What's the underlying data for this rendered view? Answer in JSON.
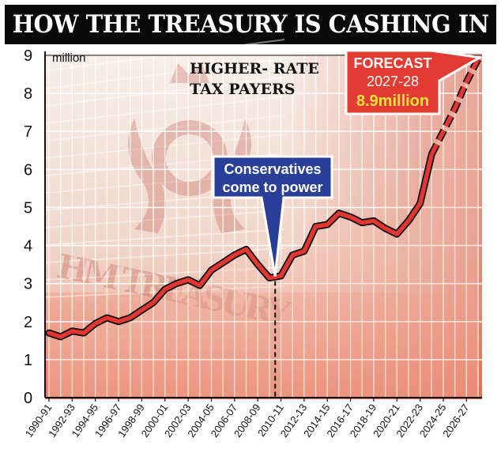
{
  "header": {
    "title": "HOW THE TREASURY IS CASHING IN"
  },
  "background": {
    "stamp_text": "HM TREASURY"
  },
  "chart_data": {
    "type": "line",
    "title": "HOW THE TREASURY IS CASHING IN",
    "series_label": [
      "HIGHER- RATE",
      "TAX PAYERS"
    ],
    "ylabel": "million",
    "ylim": [
      0,
      9
    ],
    "yticks": [
      "0",
      "1",
      "2",
      "3",
      "4",
      "5",
      "6",
      "7",
      "8",
      "9"
    ],
    "x_tick_labels": [
      "1990-91",
      "1992-93",
      "1994-95",
      "1996-97",
      "1998-99",
      "2000-01",
      "2002-03",
      "2004-05",
      "2006-07",
      "2008-09",
      "2010-11",
      "2012-13",
      "2014-15",
      "2016-17",
      "2018-19",
      "2020-21",
      "2022-23",
      "2024-25",
      "2026-27"
    ],
    "x": [
      "1990-91",
      "1991-92",
      "1992-93",
      "1993-94",
      "1994-95",
      "1995-96",
      "1996-97",
      "1997-98",
      "1998-99",
      "1999-00",
      "2000-01",
      "2001-02",
      "2002-03",
      "2003-04",
      "2004-05",
      "2005-06",
      "2006-07",
      "2007-08",
      "2008-09",
      "2009-10",
      "2010-11",
      "2011-12",
      "2012-13",
      "2013-14",
      "2014-15",
      "2015-16",
      "2016-17",
      "2017-18",
      "2018-19",
      "2019-20",
      "2020-21",
      "2021-22",
      "2022-23",
      "2023-24",
      "2024-25",
      "2025-26",
      "2026-27",
      "2027-28"
    ],
    "series": [
      {
        "values": [
          1.7,
          1.6,
          1.75,
          1.7,
          1.95,
          2.1,
          2.0,
          2.1,
          2.3,
          2.5,
          2.85,
          3.0,
          3.1,
          2.95,
          3.35,
          3.55,
          3.75,
          3.9,
          3.5,
          3.15,
          3.2,
          3.75,
          3.85,
          4.5,
          4.55,
          4.85,
          4.75,
          4.6,
          4.65,
          4.45,
          4.3,
          4.65,
          5.1,
          6.4,
          7.0,
          7.6,
          8.3,
          8.9
        ],
        "forecast_from": "2023-24"
      }
    ],
    "grid": true,
    "annotations": [
      {
        "text": [
          "Conservatives",
          "come to power"
        ],
        "x": "2010-11",
        "y": 3.15,
        "color": "#2a3f97"
      },
      {
        "text": [
          "FORECAST",
          "2027-28",
          "8.9",
          "million"
        ],
        "x": "2027-28",
        "y": 8.9,
        "color": "#e33b32"
      }
    ],
    "colors": {
      "line": "#e23631",
      "line_outline": "#0a0a0a",
      "grid": "#ffffff",
      "shade": "#f4c4b5"
    }
  }
}
